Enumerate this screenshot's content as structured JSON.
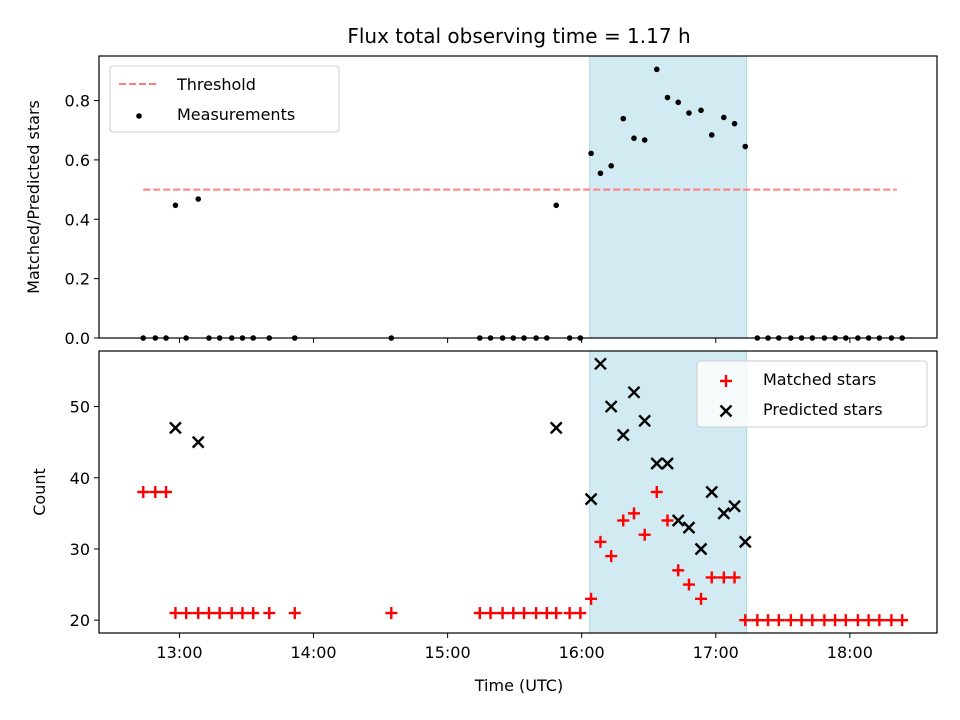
{
  "title": "Flux total observing time = 1.17 h",
  "colors": {
    "threshold": "#ff7f7f",
    "measurement": "#000000",
    "matched": "#ff0000",
    "predicted": "#000000",
    "band": "#add8e6"
  },
  "chart_data": [
    {
      "type": "scatter",
      "panel": "top",
      "ylabel": "Matched/Predicted stars",
      "xlabel": "",
      "x_unit": "hours UTC",
      "xlim": [
        12.4,
        18.65
      ],
      "ylim": [
        0.0,
        0.95
      ],
      "yticks": [
        0.0,
        0.2,
        0.4,
        0.6,
        0.8
      ],
      "ytick_labels": [
        "0.0",
        "0.2",
        "0.4",
        "0.6",
        "0.8"
      ],
      "xticks": [
        13,
        14,
        15,
        16,
        17,
        18
      ],
      "highlight_band": [
        16.06,
        17.23
      ],
      "legend_position": "upper left",
      "threshold": {
        "name": "Threshold",
        "y": 0.5,
        "x_range": [
          12.73,
          18.35
        ]
      },
      "series": [
        {
          "name": "Measurements",
          "marker": "dot",
          "points": [
            [
              12.73,
              0
            ],
            [
              12.82,
              0
            ],
            [
              12.9,
              0
            ],
            [
              12.97,
              0.447
            ],
            [
              13.05,
              0
            ],
            [
              13.14,
              0.468
            ],
            [
              13.22,
              0
            ],
            [
              13.3,
              0
            ],
            [
              13.39,
              0
            ],
            [
              13.47,
              0
            ],
            [
              13.55,
              0
            ],
            [
              13.67,
              0
            ],
            [
              13.86,
              0
            ],
            [
              14.58,
              0
            ],
            [
              15.24,
              0
            ],
            [
              15.32,
              0
            ],
            [
              15.41,
              0
            ],
            [
              15.49,
              0
            ],
            [
              15.57,
              0
            ],
            [
              15.66,
              0
            ],
            [
              15.74,
              0
            ],
            [
              15.81,
              0.447
            ],
            [
              15.91,
              0
            ],
            [
              15.99,
              0
            ],
            [
              16.07,
              0.622
            ],
            [
              16.14,
              0.555
            ],
            [
              16.22,
              0.58
            ],
            [
              16.31,
              0.739
            ],
            [
              16.39,
              0.673
            ],
            [
              16.47,
              0.667
            ],
            [
              16.56,
              0.905
            ],
            [
              16.64,
              0.81
            ],
            [
              16.72,
              0.794
            ],
            [
              16.8,
              0.758
            ],
            [
              16.89,
              0.767
            ],
            [
              16.97,
              0.684
            ],
            [
              17.06,
              0.743
            ],
            [
              17.14,
              0.722
            ],
            [
              17.22,
              0.645
            ],
            [
              17.31,
              0
            ],
            [
              17.39,
              0
            ],
            [
              17.47,
              0
            ],
            [
              17.56,
              0
            ],
            [
              17.64,
              0
            ],
            [
              17.72,
              0
            ],
            [
              17.81,
              0
            ],
            [
              17.89,
              0
            ],
            [
              17.97,
              0
            ],
            [
              18.06,
              0
            ],
            [
              18.14,
              0
            ],
            [
              18.22,
              0
            ],
            [
              18.31,
              0
            ],
            [
              18.39,
              0
            ]
          ]
        }
      ]
    },
    {
      "type": "scatter",
      "panel": "bottom",
      "ylabel": "Count",
      "xlabel": "Time (UTC)",
      "x_unit": "hours UTC",
      "xlim": [
        12.4,
        18.65
      ],
      "ylim": [
        18.2,
        57.8
      ],
      "yticks": [
        20,
        30,
        40,
        50
      ],
      "ytick_labels": [
        "20",
        "30",
        "40",
        "50"
      ],
      "xticks": [
        13,
        14,
        15,
        16,
        17,
        18
      ],
      "xtick_labels": [
        "13:00",
        "14:00",
        "15:00",
        "16:00",
        "17:00",
        "18:00"
      ],
      "highlight_band": [
        16.06,
        17.23
      ],
      "legend_position": "upper right",
      "series": [
        {
          "name": "Matched stars",
          "marker": "plus",
          "points": [
            [
              12.73,
              38
            ],
            [
              12.82,
              38
            ],
            [
              12.9,
              38
            ],
            [
              12.97,
              21
            ],
            [
              13.05,
              21
            ],
            [
              13.14,
              21
            ],
            [
              13.22,
              21
            ],
            [
              13.3,
              21
            ],
            [
              13.39,
              21
            ],
            [
              13.47,
              21
            ],
            [
              13.55,
              21
            ],
            [
              13.67,
              21
            ],
            [
              13.86,
              21
            ],
            [
              14.58,
              21
            ],
            [
              15.24,
              21
            ],
            [
              15.32,
              21
            ],
            [
              15.41,
              21
            ],
            [
              15.49,
              21
            ],
            [
              15.57,
              21
            ],
            [
              15.66,
              21
            ],
            [
              15.74,
              21
            ],
            [
              15.81,
              21
            ],
            [
              15.91,
              21
            ],
            [
              15.99,
              21
            ],
            [
              16.07,
              23
            ],
            [
              16.14,
              31
            ],
            [
              16.22,
              29
            ],
            [
              16.31,
              34
            ],
            [
              16.39,
              35
            ],
            [
              16.47,
              32
            ],
            [
              16.56,
              38
            ],
            [
              16.64,
              34
            ],
            [
              16.72,
              27
            ],
            [
              16.8,
              25
            ],
            [
              16.89,
              23
            ],
            [
              16.97,
              26
            ],
            [
              17.06,
              26
            ],
            [
              17.14,
              26
            ],
            [
              17.22,
              20
            ],
            [
              17.31,
              20
            ],
            [
              17.39,
              20
            ],
            [
              17.47,
              20
            ],
            [
              17.56,
              20
            ],
            [
              17.64,
              20
            ],
            [
              17.72,
              20
            ],
            [
              17.81,
              20
            ],
            [
              17.89,
              20
            ],
            [
              17.97,
              20
            ],
            [
              18.06,
              20
            ],
            [
              18.14,
              20
            ],
            [
              18.22,
              20
            ],
            [
              18.31,
              20
            ],
            [
              18.39,
              20
            ]
          ]
        },
        {
          "name": "Predicted stars",
          "marker": "x",
          "points": [
            [
              12.97,
              47
            ],
            [
              13.14,
              45
            ],
            [
              15.81,
              47
            ],
            [
              16.07,
              37
            ],
            [
              16.14,
              56
            ],
            [
              16.22,
              50
            ],
            [
              16.31,
              46
            ],
            [
              16.39,
              52
            ],
            [
              16.47,
              48
            ],
            [
              16.56,
              42
            ],
            [
              16.64,
              42
            ],
            [
              16.72,
              34
            ],
            [
              16.8,
              33
            ],
            [
              16.89,
              30
            ],
            [
              16.97,
              38
            ],
            [
              17.06,
              35
            ],
            [
              17.14,
              36
            ],
            [
              17.22,
              31
            ]
          ]
        }
      ]
    }
  ]
}
